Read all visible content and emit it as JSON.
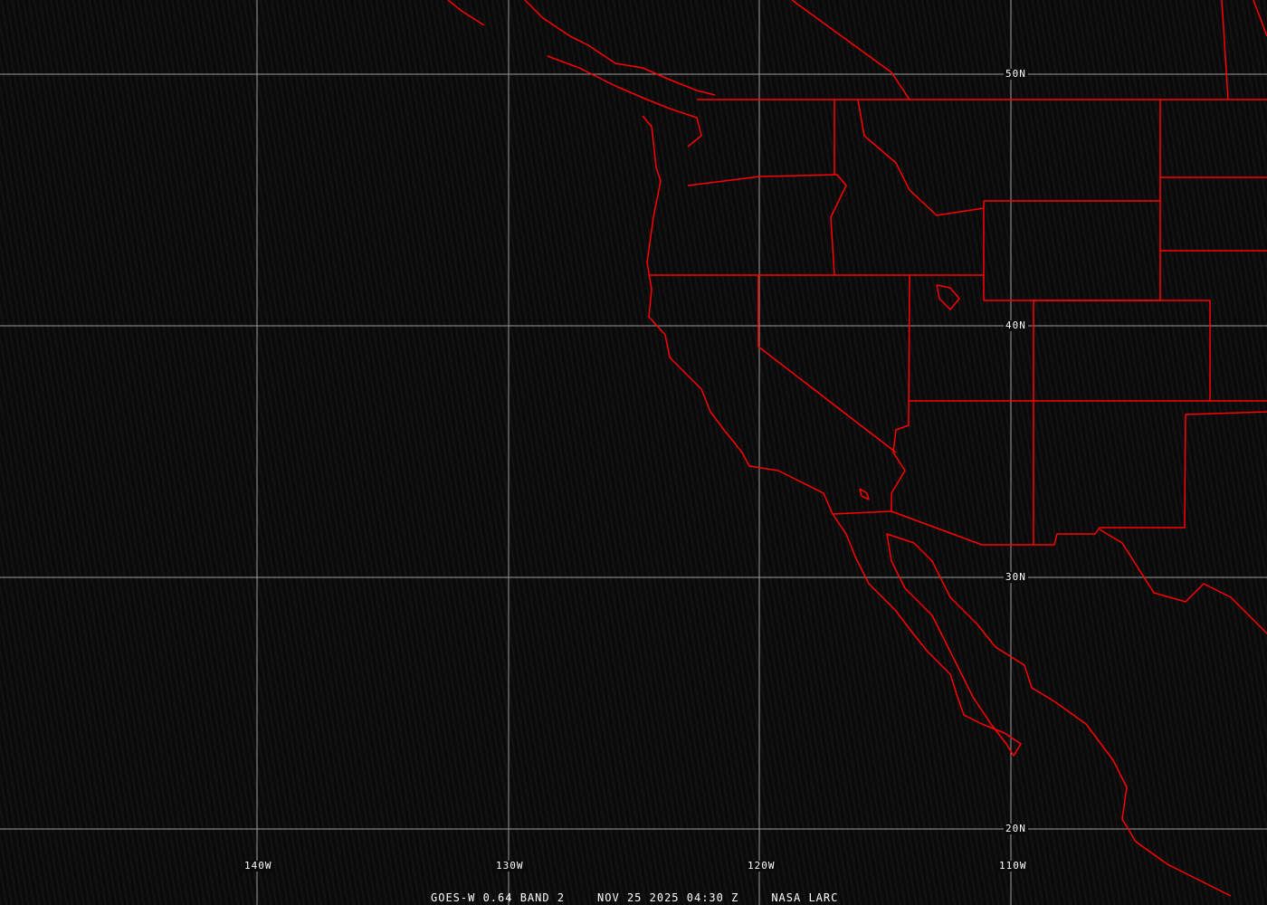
{
  "map": {
    "line_color": "#ff0000",
    "grid_color": "#9a9a9a",
    "latitude_labels": [
      "50N",
      "40N",
      "30N",
      "20N"
    ],
    "longitude_labels": [
      "140W",
      "130W",
      "120W",
      "110W"
    ]
  },
  "caption": {
    "satellite": "GOES-W 0.64 BAND 2",
    "datetime": "NOV 25 2025 04:30 Z",
    "source": "NASA LARC"
  }
}
